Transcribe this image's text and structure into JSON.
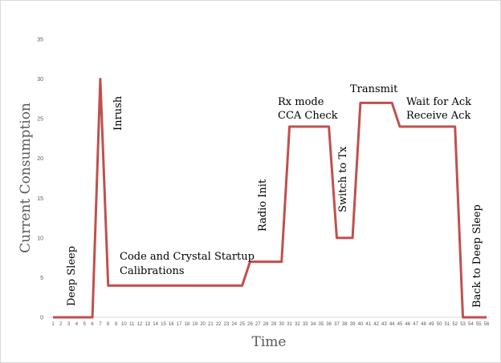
{
  "chart_data": {
    "type": "line",
    "xlabel": "Time",
    "ylabel": "Current Consumption",
    "ylim": [
      0,
      35
    ],
    "yticks": [
      0,
      5,
      10,
      15,
      20,
      25,
      30,
      35
    ],
    "x": [
      1,
      2,
      3,
      4,
      5,
      6,
      7,
      8,
      9,
      10,
      11,
      12,
      13,
      14,
      15,
      16,
      17,
      18,
      19,
      20,
      21,
      22,
      23,
      24,
      25,
      26,
      27,
      28,
      29,
      30,
      31,
      32,
      33,
      34,
      35,
      36,
      37,
      38,
      39,
      40,
      41,
      42,
      43,
      44,
      45,
      46,
      47,
      48,
      49,
      50,
      51,
      52,
      53,
      54,
      55,
      56
    ],
    "values": [
      0,
      0,
      0,
      0,
      0,
      0,
      30,
      4,
      4,
      4,
      4,
      4,
      4,
      4,
      4,
      4,
      4,
      4,
      4,
      4,
      4,
      4,
      4,
      4,
      4,
      7,
      7,
      7,
      7,
      7,
      24,
      24,
      24,
      24,
      24,
      24,
      10,
      10,
      10,
      27,
      27,
      27,
      27,
      27,
      24,
      24,
      24,
      24,
      24,
      24,
      24,
      24,
      0,
      0,
      0,
      0
    ],
    "grid": false,
    "line_color": "#c0504d",
    "annotations": [
      {
        "text": "Deep Sleep",
        "orientation": "vertical"
      },
      {
        "text": "Inrush",
        "orientation": "vertical"
      },
      {
        "text": "Code and Crystal Startup",
        "orientation": "horizontal"
      },
      {
        "text": "Calibrations",
        "orientation": "horizontal"
      },
      {
        "text": "Radio Init",
        "orientation": "vertical"
      },
      {
        "text": "Rx mode",
        "orientation": "horizontal"
      },
      {
        "text": "CCA Check",
        "orientation": "horizontal"
      },
      {
        "text": "Switch to Tx",
        "orientation": "vertical"
      },
      {
        "text": "Transmit",
        "orientation": "horizontal"
      },
      {
        "text": "Wait for Ack",
        "orientation": "horizontal"
      },
      {
        "text": "Receive Ack",
        "orientation": "horizontal"
      },
      {
        "text": "Back to Deep Sleep",
        "orientation": "vertical"
      }
    ]
  }
}
